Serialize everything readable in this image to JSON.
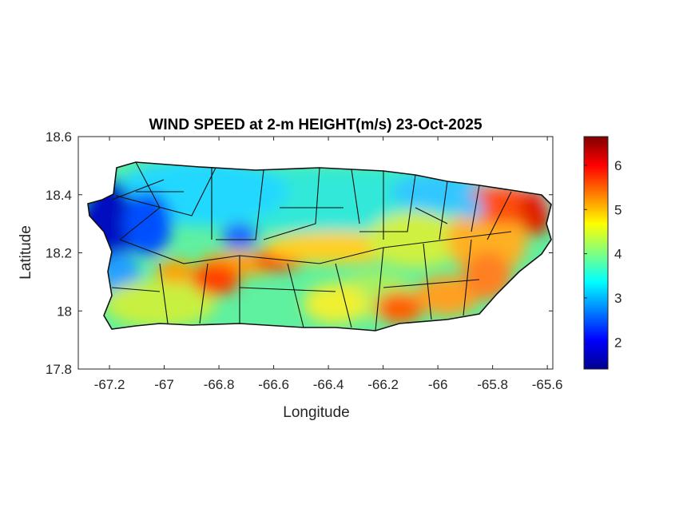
{
  "chart_data": {
    "type": "heatmap",
    "title": "WIND SPEED at 2-m HEIGHT(m/s) 23-Oct-2025",
    "xlabel": "Longitude",
    "ylabel": "Latitude",
    "xlim": [
      -67.314,
      -65.58
    ],
    "ylim": [
      17.8,
      18.6
    ],
    "xticks": [
      -67.2,
      -67,
      -66.8,
      -66.6,
      -66.4,
      -66.2,
      -66,
      -65.8,
      -65.6
    ],
    "xtick_labels": [
      "-67.2",
      "-67",
      "-66.8",
      "-66.6",
      "-66.4",
      "-66.2",
      "-66",
      "-65.8",
      "-65.6"
    ],
    "yticks": [
      17.8,
      18,
      18.2,
      18.4,
      18.6
    ],
    "ytick_labels": [
      "17.8",
      "18",
      "18.2",
      "18.4",
      "18.6"
    ],
    "colorbar": {
      "colormap": "jet",
      "range": [
        1.39,
        6.65
      ],
      "ticks": [
        2,
        3,
        4,
        5,
        6
      ],
      "tick_labels": [
        "2",
        "3",
        "4",
        "5",
        "6"
      ]
    },
    "grid": false
  }
}
